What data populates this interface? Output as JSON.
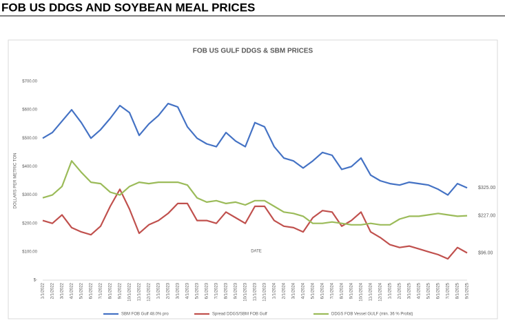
{
  "header": {
    "title": "FOB US DDGS AND SOYBEAN MEAL PRICES"
  },
  "chart_data": {
    "type": "line",
    "title": "FOB US GULF DDGS & SBM PRICES",
    "y_label": "DOLLARS PER METRIC TON",
    "x_label": "DATE",
    "categories": [
      "1/1/2022",
      "2/1/2022",
      "3/1/2022",
      "4/1/2022",
      "5/1/2022",
      "6/1/2022",
      "7/1/2022",
      "8/1/2022",
      "9/1/2022",
      "10/1/2022",
      "11/1/2022",
      "12/1/2022",
      "1/1/2023",
      "2/1/2023",
      "3/1/2023",
      "4/1/2023",
      "5/1/2023",
      "6/1/2023",
      "7/1/2023",
      "8/1/2023",
      "9/1/2023",
      "10/1/2023",
      "11/1/2023",
      "12/1/2023",
      "1/1/2024",
      "2/1/2024",
      "3/1/2024",
      "4/1/2024",
      "5/1/2024",
      "6/1/2024",
      "7/1/2024",
      "8/1/2024",
      "9/1/2024",
      "10/1/2024",
      "11/1/2024",
      "12/1/2024",
      "1/1/2025",
      "2/1/2025",
      "3/1/2025",
      "4/1/2025",
      "5/1/2025",
      "6/1/2025",
      "7/1/2025",
      "8/1/2025",
      "9/1/2025"
    ],
    "series": [
      {
        "name": "SBM FOB Gulf 48.0% pro",
        "color": "#4472c4",
        "end_label": "$325.00",
        "values": [
          500,
          520,
          560,
          600,
          555,
          500,
          530,
          570,
          615,
          590,
          510,
          550,
          580,
          622,
          610,
          540,
          500,
          480,
          470,
          520,
          490,
          470,
          555,
          540,
          470,
          430,
          420,
          395,
          420,
          450,
          440,
          390,
          400,
          430,
          370,
          350,
          340,
          335,
          345,
          340,
          335,
          320,
          300,
          340,
          325
        ]
      },
      {
        "name": "Spread DDGS/SBM FOB Gulf",
        "color": "#c0504d",
        "end_label": "$96.00",
        "values": [
          210,
          200,
          230,
          185,
          170,
          160,
          190,
          260,
          320,
          250,
          165,
          195,
          210,
          235,
          270,
          270,
          210,
          210,
          200,
          240,
          220,
          200,
          260,
          260,
          210,
          190,
          185,
          170,
          220,
          245,
          240,
          190,
          210,
          240,
          170,
          150,
          125,
          115,
          120,
          110,
          100,
          90,
          75,
          115,
          96
        ]
      },
      {
        "name": "DDGS FOB Vessel GULF (min. 36 % Profat)",
        "color": "#9bbb59",
        "end_label": "$227.00",
        "values": [
          290,
          300,
          330,
          420,
          380,
          345,
          340,
          310,
          300,
          330,
          345,
          340,
          345,
          345,
          345,
          335,
          290,
          275,
          280,
          270,
          275,
          265,
          280,
          280,
          260,
          240,
          235,
          225,
          200,
          200,
          205,
          200,
          195,
          195,
          200,
          195,
          195,
          215,
          225,
          225,
          230,
          235,
          230,
          225,
          227
        ]
      }
    ],
    "ylim": [
      0,
      700
    ],
    "yticks": [
      {
        "value": 0,
        "label": "$-"
      },
      {
        "value": 100,
        "label": "$100.00"
      },
      {
        "value": 200,
        "label": "$200.00"
      },
      {
        "value": 300,
        "label": "$300.00"
      },
      {
        "value": 400,
        "label": "$400.00"
      },
      {
        "value": 500,
        "label": "$500.00"
      },
      {
        "value": 600,
        "label": "$600.00"
      },
      {
        "value": 700,
        "label": "$700.00"
      }
    ],
    "grid": false
  }
}
